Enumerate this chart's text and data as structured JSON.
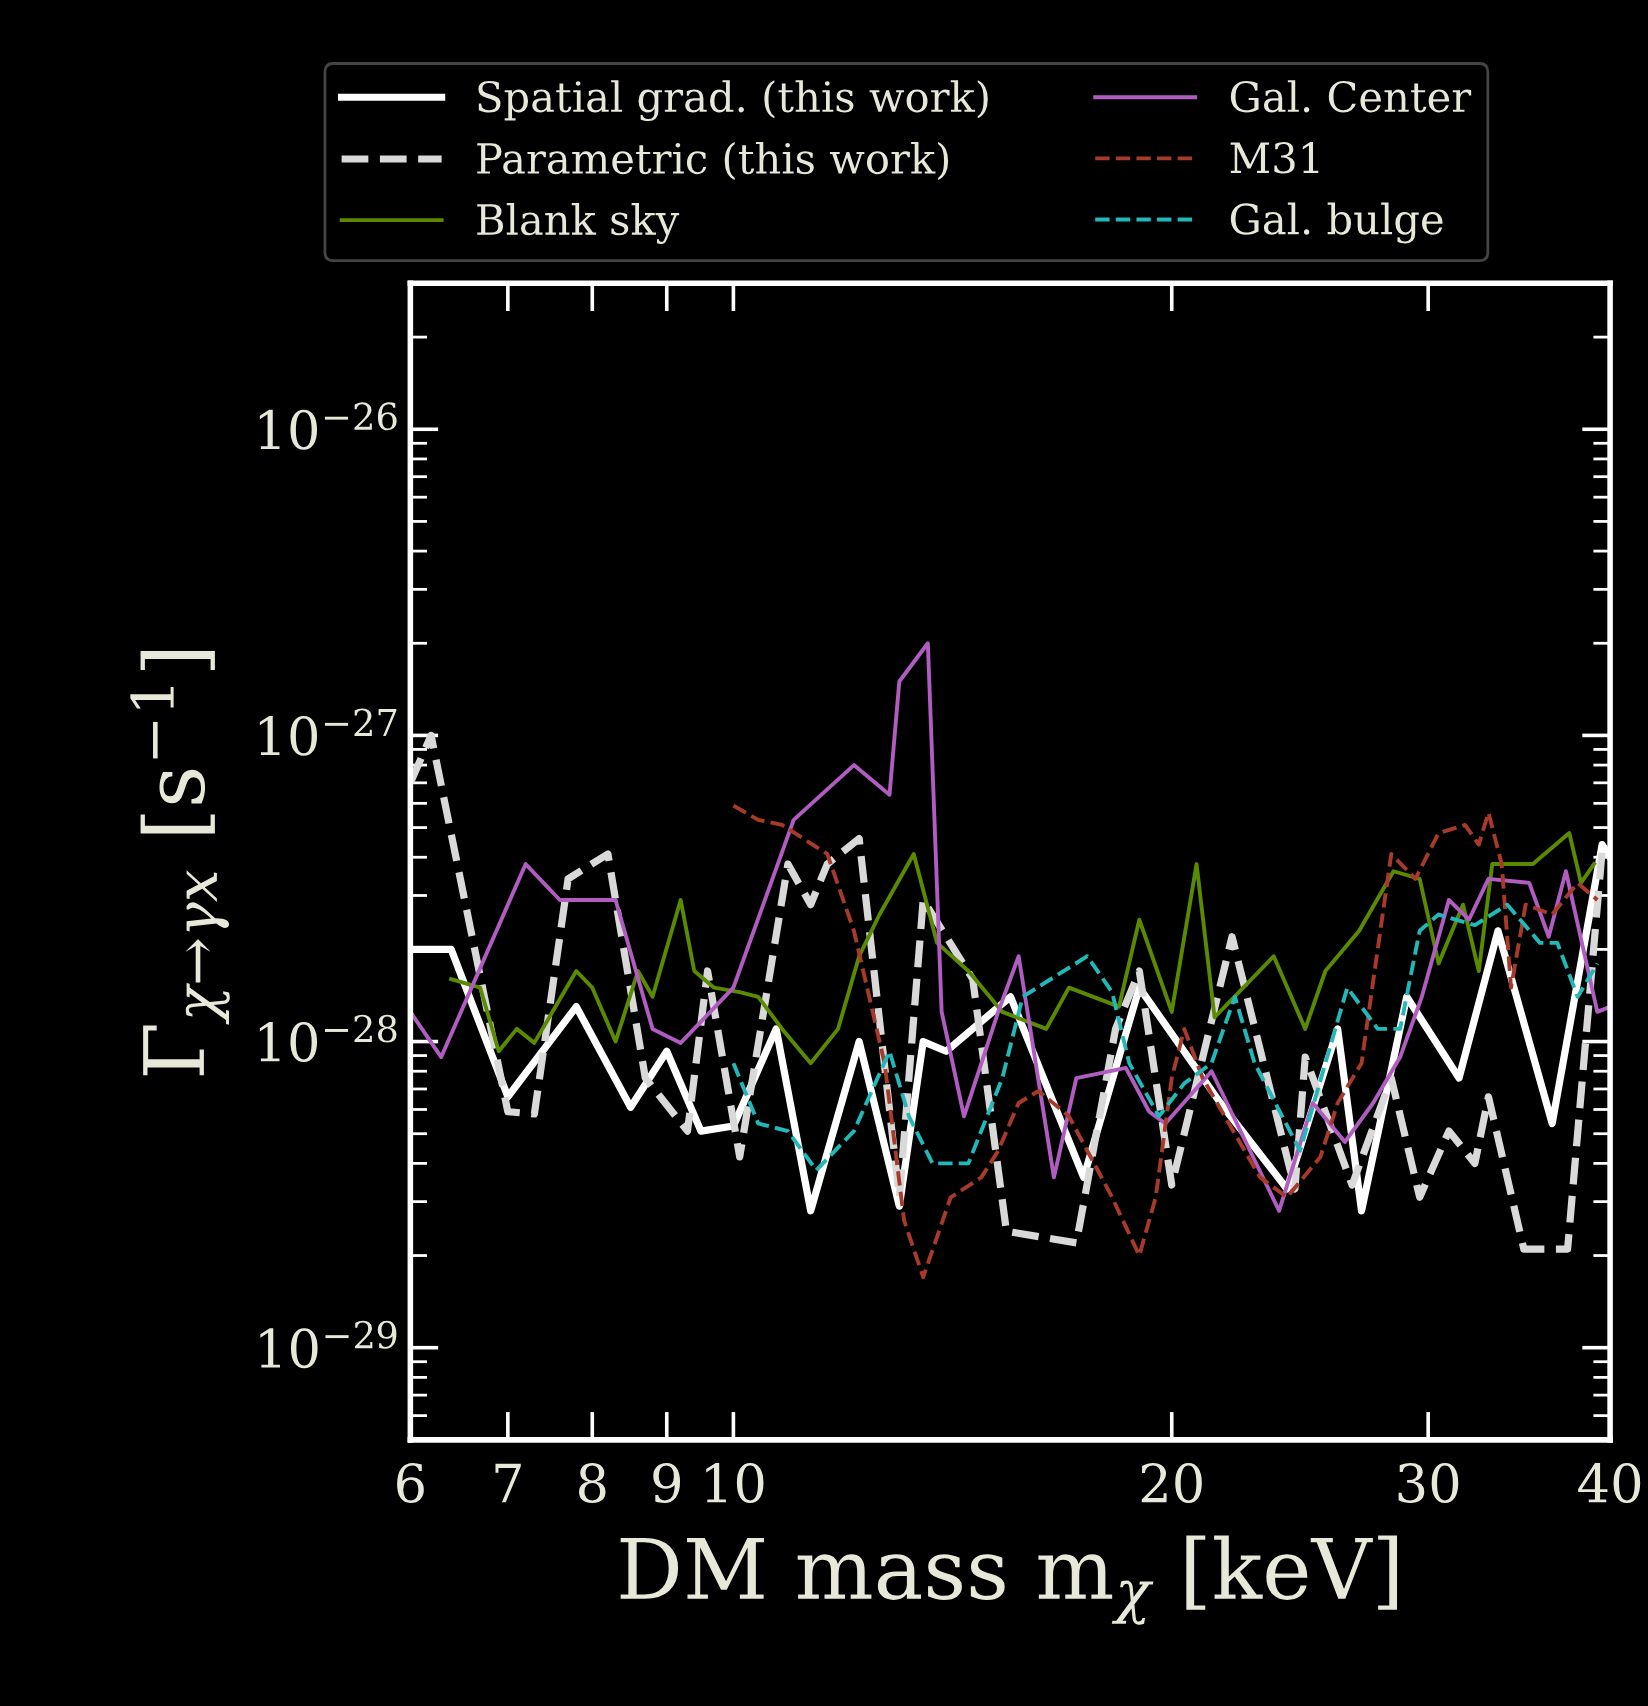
{
  "chart_data": {
    "type": "line",
    "xlabel": "DM mass m$_{χ}$ [keV]",
    "ylabel": "Γ$_{χ→γx}$ [s$^{−1}$]",
    "log": "xy",
    "xlim": [
      6,
      40
    ],
    "ylim": [
      5e-30,
      3e-26
    ],
    "xticks": [
      6,
      7,
      8,
      9,
      10,
      20,
      30,
      40
    ],
    "yticks": [
      {
        "value": 1e-29,
        "label": "10$^{−29}$"
      },
      {
        "value": 1e-28,
        "label": "10$^{−28}$"
      },
      {
        "value": 1e-27,
        "label": "10$^{−27}$"
      },
      {
        "value": 1e-26,
        "label": "10$^{−26}$"
      }
    ],
    "grid": false,
    "legend": "top",
    "marker": "none",
    "series": [
      {
        "name": "Spatial grad. (this work)",
        "color": "#ffffff",
        "line_style": "solid",
        "x": [
          6,
          6.4,
          7,
          7.8,
          8.5,
          9,
          9.5,
          10,
          10.7,
          11.3,
          12.2,
          13,
          13.5,
          14,
          15.5,
          17.4,
          19,
          21.6,
          24,
          26,
          27,
          29,
          31.5,
          33.5,
          36.5,
          39.5,
          40
        ],
        "values": [
          2e-28,
          2e-28,
          6.6e-29,
          1.3e-28,
          6.1e-29,
          9.3e-29,
          5.1e-29,
          5.3e-29,
          1.1e-28,
          2.8e-29,
          1e-28,
          2.9e-29,
          1e-28,
          9.3e-29,
          1.4e-28,
          3.6e-29,
          1.5e-28,
          6.3e-29,
          3.3e-29,
          1.1e-28,
          2.8e-29,
          1.4e-28,
          7.6e-29,
          2.3e-28,
          5.4e-29,
          4.4e-28,
          4e-28
        ]
      },
      {
        "name": "Parametric (this work)",
        "color": "#d9d9d9",
        "line_style": "dashed",
        "x": [
          6,
          6.2,
          7,
          7.3,
          7.7,
          8.2,
          8.7,
          9.3,
          9.6,
          10.1,
          10.9,
          11.3,
          11.6,
          12.2,
          13,
          13.5,
          14.6,
          15.4,
          17.2,
          18.3,
          19,
          20,
          22,
          24.3,
          24.7,
          26.6,
          28.3,
          29.6,
          31,
          32.3,
          33,
          34.9,
          37.4,
          39.5,
          40
        ],
        "values": [
          7e-28,
          1e-27,
          5.9e-29,
          5.8e-29,
          3.4e-28,
          4.1e-28,
          7.6e-29,
          5.1e-29,
          1.7e-28,
          4.2e-29,
          3.8e-28,
          2.8e-28,
          3.8e-28,
          4.6e-28,
          3.1e-29,
          2.9e-28,
          1.6e-28,
          2.4e-29,
          2.2e-29,
          1.1e-28,
          1.7e-28,
          3.4e-29,
          2.2e-28,
          3.3e-29,
          8.9e-29,
          3.4e-29,
          7.6e-29,
          3.1e-29,
          5.1e-29,
          4e-29,
          6.6e-29,
          2.1e-29,
          2.1e-29,
          4.2e-28,
          4e-28
        ]
      },
      {
        "name": "Blank sky",
        "color": "#5a8a00",
        "line_style": "solid",
        "x": [
          6.4,
          6.7,
          6.9,
          7.1,
          7.3,
          7.8,
          8.0,
          8.3,
          8.6,
          8.8,
          9.2,
          9.4,
          9.7,
          10.1,
          10.4,
          10.8,
          11.3,
          11.8,
          12.2,
          12.6,
          13.3,
          13.8,
          14.5,
          15.3,
          16.4,
          17,
          18.4,
          19,
          20,
          20.8,
          21.4,
          23.5,
          24.7,
          25.5,
          26.9,
          28.4,
          29.6,
          30.5,
          31.7,
          32.5,
          33.2,
          35.4,
          37.5,
          38.2,
          39
        ],
        "values": [
          1.6e-28,
          1.5e-28,
          9.3e-29,
          1.1e-28,
          9.9e-29,
          1.7e-28,
          1.5e-28,
          1e-28,
          1.7e-28,
          1.4e-28,
          2.9e-28,
          1.7e-28,
          1.5e-28,
          1.45e-28,
          1.4e-28,
          1.1e-28,
          8.5e-29,
          1.1e-28,
          1.9e-28,
          2.6e-28,
          4.1e-28,
          2.1e-28,
          1.7e-28,
          1.25e-28,
          1.1e-28,
          1.5e-28,
          1.3e-28,
          2.5e-28,
          1.25e-28,
          3.8e-28,
          1.2e-28,
          1.9e-28,
          1.1e-28,
          1.7e-28,
          2.3e-28,
          3.6e-28,
          3.4e-28,
          1.8e-28,
          2.8e-28,
          1.7e-28,
          3.8e-28,
          3.8e-28,
          4.8e-28,
          3.3e-28,
          3.8e-28
        ]
      },
      {
        "name": "Gal. Center",
        "color": "#b05cc0",
        "line_style": "solid",
        "x": [
          6,
          6.3,
          7.2,
          7.6,
          8.3,
          8.8,
          9.2,
          10,
          11,
          12.1,
          12.8,
          13,
          13.6,
          13.9,
          14.4,
          15.2,
          15.7,
          16.6,
          17.2,
          18.6,
          19.3,
          19.8,
          21.3,
          23.7,
          25,
          26.3,
          27.5,
          28.7,
          29.7,
          31,
          32,
          33,
          35.2,
          36.3,
          37.3,
          39.2,
          40
        ],
        "values": [
          1.25e-28,
          8.9e-29,
          3.8e-28,
          2.9e-28,
          2.9e-28,
          1.1e-28,
          9.9e-29,
          1.5e-28,
          5.3e-28,
          8e-28,
          6.4e-28,
          1.5e-27,
          2e-27,
          1.25e-28,
          5.7e-29,
          1.25e-28,
          1.9e-28,
          3.6e-29,
          7.6e-29,
          8.2e-29,
          5.9e-29,
          5.4e-29,
          8e-29,
          2.8e-29,
          6.3e-29,
          4.7e-29,
          6.3e-29,
          8.9e-29,
          1.4e-28,
          2.9e-28,
          2.5e-28,
          3.4e-28,
          3.3e-28,
          2.2e-28,
          3.6e-28,
          1.25e-28,
          1.3e-28
        ]
      },
      {
        "name": "M31",
        "color": "#a83a2a",
        "line_style": "dashed",
        "x": [
          10,
          10.4,
          10.8,
          11.6,
          12.1,
          12.7,
          13.1,
          13.5,
          14.1,
          14.8,
          15.2,
          15.7,
          16.2,
          17,
          18.2,
          19,
          19.5,
          20,
          20.4,
          21,
          23,
          24,
          25.3,
          26,
          27,
          28.3,
          29.4,
          30.5,
          31.8,
          32.5,
          33,
          33.7,
          34.2,
          35,
          36.5,
          38,
          39.2
        ],
        "values": [
          5.9e-28,
          5.3e-28,
          5.1e-28,
          4.1e-28,
          2.3e-28,
          8.5e-29,
          2.6e-29,
          1.7e-29,
          3.1e-29,
          3.6e-29,
          4.4e-29,
          6.3e-29,
          6.9e-29,
          5.7e-29,
          3.1e-29,
          2e-29,
          3.1e-29,
          7.6e-29,
          1.1e-28,
          7.6e-29,
          3.6e-29,
          3.1e-29,
          4.2e-29,
          6.3e-29,
          8.5e-29,
          4.1e-28,
          3.4e-28,
          4.8e-28,
          5.1e-28,
          4.4e-28,
          5.6e-28,
          3.8e-28,
          1.5e-28,
          2.8e-28,
          2.6e-28,
          3.3e-28,
          2.9e-28
        ]
      },
      {
        "name": "Gal. bulge",
        "color": "#20b8b8",
        "line_style": "dashed",
        "x": [
          10,
          10.4,
          10.9,
          11.4,
          12.1,
          12.8,
          13.2,
          13.7,
          14.5,
          15.3,
          15.8,
          17.5,
          18.2,
          18.7,
          19.6,
          20.4,
          21.3,
          22.1,
          22.8,
          24.5,
          25.5,
          26.4,
          27.7,
          28.7,
          29.6,
          30.5,
          32.3,
          34,
          35.8,
          36.8,
          38,
          39.2
        ],
        "values": [
          8.5e-29,
          5.4e-29,
          5.1e-29,
          3.8e-29,
          5.1e-29,
          9.3e-29,
          5.7e-29,
          4e-29,
          4e-29,
          7.6e-29,
          1.4e-28,
          1.9e-28,
          1.45e-28,
          8.5e-29,
          5.7e-29,
          7.3e-29,
          8.5e-29,
          1.4e-28,
          8.5e-29,
          4.4e-29,
          8.5e-29,
          1.5e-28,
          1.1e-28,
          1.1e-28,
          2.3e-28,
          2.6e-28,
          2.4e-28,
          2.8e-28,
          2.1e-28,
          2.1e-28,
          1.4e-28,
          1.8e-28
        ]
      }
    ]
  }
}
